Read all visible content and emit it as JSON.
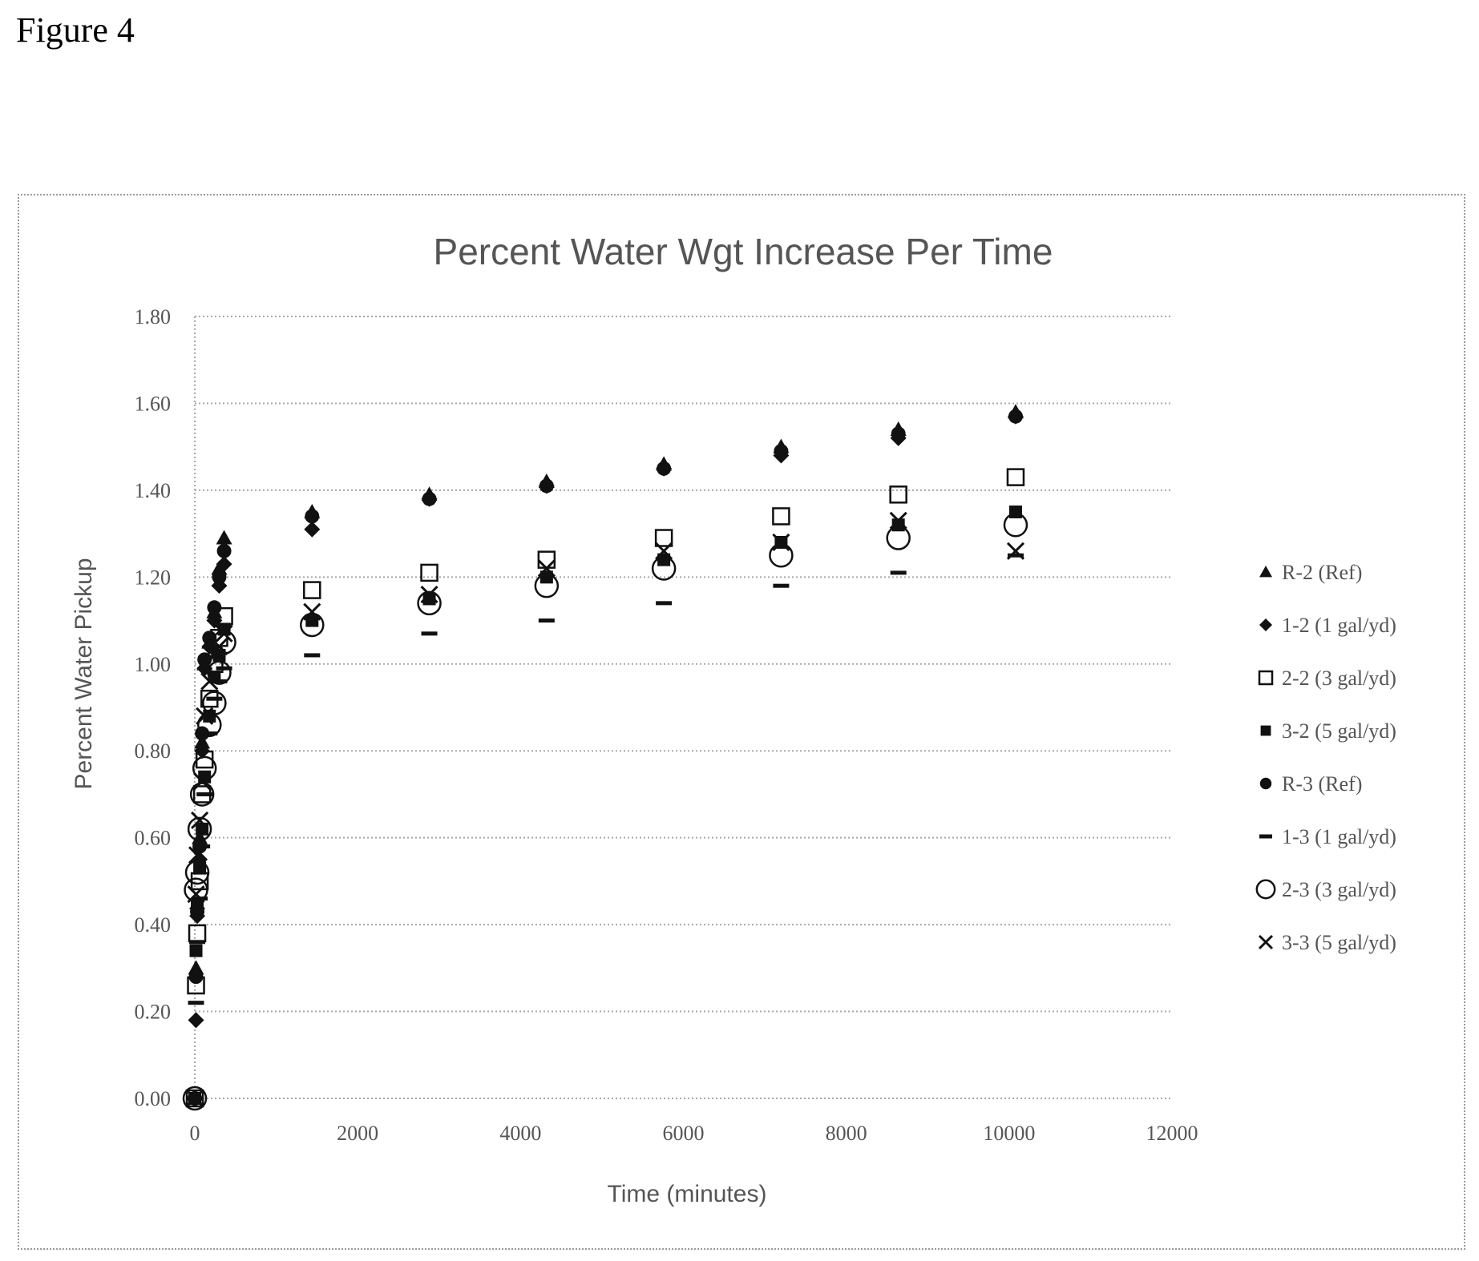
{
  "figure_label": "Figure 4",
  "colors": {
    "marker": "#111111",
    "grid": "#a8a8a8",
    "text": "#555555"
  },
  "chart_data": {
    "type": "scatter",
    "title": "Percent Water Wgt Increase Per Time",
    "xlabel": "Time (minutes)",
    "ylabel": "Percent Water Pickup",
    "xlim": [
      0,
      12000
    ],
    "ylim": [
      0,
      1.8
    ],
    "x_ticks": [
      "0",
      "2000",
      "4000",
      "6000",
      "8000",
      "10000",
      "12000"
    ],
    "y_ticks": [
      "0.00",
      "0.20",
      "0.40",
      "0.60",
      "0.80",
      "1.00",
      "1.20",
      "1.40",
      "1.60",
      "1.80"
    ],
    "grid": "horizontal dotted",
    "legend_position": "right",
    "series": [
      {
        "name": "R-2 (Ref)",
        "marker": "triangle",
        "x": [
          0,
          15,
          30,
          60,
          90,
          120,
          180,
          240,
          300,
          360,
          1440,
          2880,
          4320,
          5760,
          7200,
          8640,
          10080
        ],
        "y": [
          0.0,
          0.3,
          0.45,
          0.6,
          0.82,
          1.0,
          1.05,
          1.12,
          1.22,
          1.29,
          1.35,
          1.39,
          1.42,
          1.46,
          1.5,
          1.54,
          1.58
        ]
      },
      {
        "name": "1-2 (1 gal/yd)",
        "marker": "diamond",
        "x": [
          0,
          15,
          30,
          60,
          90,
          120,
          180,
          240,
          300,
          360,
          1440,
          2880,
          4320,
          5760,
          7200,
          8640,
          10080
        ],
        "y": [
          0.0,
          0.18,
          0.42,
          0.55,
          0.8,
          0.99,
          1.04,
          1.1,
          1.18,
          1.23,
          1.31,
          1.38,
          1.41,
          1.45,
          1.48,
          1.52,
          1.57
        ]
      },
      {
        "name": "2-2 (3 gal/yd)",
        "marker": "square",
        "x": [
          0,
          15,
          30,
          60,
          90,
          120,
          180,
          240,
          300,
          360,
          1440,
          2880,
          4320,
          5760,
          7200,
          8640,
          10080
        ],
        "y": [
          0.0,
          0.26,
          0.38,
          0.5,
          0.7,
          0.78,
          0.92,
          1.0,
          1.06,
          1.11,
          1.17,
          1.21,
          1.24,
          1.29,
          1.34,
          1.39,
          1.43
        ]
      },
      {
        "name": "3-2 (5 gal/yd)",
        "marker": "filled-square",
        "x": [
          0,
          15,
          30,
          60,
          90,
          120,
          180,
          240,
          300,
          360,
          1440,
          2880,
          4320,
          5760,
          7200,
          8640,
          10080
        ],
        "y": [
          0.0,
          0.34,
          0.44,
          0.53,
          0.62,
          0.74,
          0.88,
          0.97,
          1.02,
          1.08,
          1.1,
          1.15,
          1.2,
          1.24,
          1.28,
          1.32,
          1.35
        ]
      },
      {
        "name": "R-3 (Ref)",
        "marker": "circle",
        "x": [
          0,
          15,
          30,
          60,
          90,
          120,
          180,
          240,
          300,
          360,
          1440,
          2880,
          4320,
          5760,
          7200,
          8640,
          10080
        ],
        "y": [
          0.0,
          0.28,
          0.43,
          0.58,
          0.84,
          1.01,
          1.06,
          1.13,
          1.2,
          1.26,
          1.34,
          1.38,
          1.41,
          1.45,
          1.49,
          1.53,
          1.57
        ]
      },
      {
        "name": "1-3 (1 gal/yd)",
        "marker": "dash",
        "x": [
          0,
          15,
          30,
          60,
          90,
          120,
          180,
          240,
          300,
          360,
          1440,
          2880,
          4320,
          5760,
          7200,
          8640,
          10080
        ],
        "y": [
          0.0,
          0.22,
          0.36,
          0.46,
          0.58,
          0.7,
          0.84,
          0.92,
          0.96,
          0.99,
          1.02,
          1.07,
          1.1,
          1.14,
          1.18,
          1.21,
          1.25
        ]
      },
      {
        "name": "2-3 (3 gal/yd)",
        "marker": "open-circle",
        "x": [
          0,
          15,
          30,
          60,
          90,
          120,
          180,
          240,
          300,
          360,
          1440,
          2880,
          4320,
          5760,
          7200,
          8640,
          10080
        ],
        "y": [
          0.0,
          0.48,
          0.52,
          0.62,
          0.7,
          0.76,
          0.86,
          0.91,
          0.98,
          1.05,
          1.09,
          1.14,
          1.18,
          1.22,
          1.25,
          1.29,
          1.32
        ]
      },
      {
        "name": "3-3 (5 gal/yd)",
        "marker": "x",
        "x": [
          0,
          15,
          30,
          60,
          90,
          120,
          180,
          240,
          300,
          360,
          1440,
          2880,
          4320,
          5760,
          7200,
          8640,
          10080
        ],
        "y": [
          0.0,
          0.47,
          0.56,
          0.64,
          0.73,
          0.88,
          0.96,
          1.02,
          1.04,
          1.07,
          1.12,
          1.16,
          1.22,
          1.26,
          1.28,
          1.33,
          1.26
        ]
      }
    ]
  }
}
